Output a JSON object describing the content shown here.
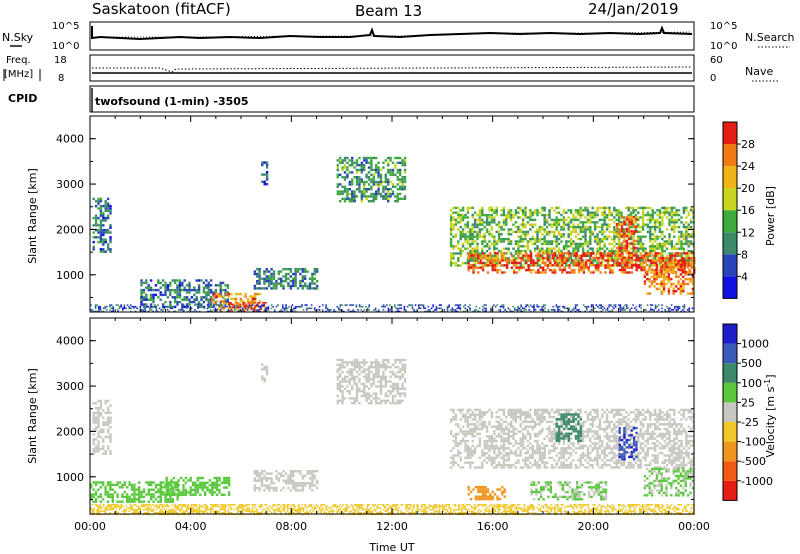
{
  "header": {
    "station": "Saskatoon (fitACF)",
    "beam": "Beam 13",
    "date": "24/Jan/2019"
  },
  "noise_panel": {
    "left_label": "N.Sky",
    "left_ticks": [
      "10^5",
      "10^0"
    ],
    "right_label": "N.Search",
    "right_ticks": [
      "10^5",
      "10^0"
    ]
  },
  "freq_panel": {
    "left_label_1": "Freq.",
    "left_label_2": "[MHz]",
    "left_ticks": [
      "18",
      "8"
    ],
    "right_label": "Nave",
    "right_ticks": [
      "60",
      "0"
    ]
  },
  "cpid_panel": {
    "label": "CPID",
    "program": "twofsound (1-min) -3505"
  },
  "chart_data": [
    {
      "type": "heatmap",
      "panel": "power",
      "ylabel": "Slant Range [km]",
      "xlabel": "",
      "ylim": [
        180,
        4500
      ],
      "yticks": [
        "1000",
        "2000",
        "3000",
        "4000"
      ],
      "xlim": [
        0,
        24
      ],
      "colorbar": {
        "label": "Power [dB]",
        "ticks": [
          "28",
          "24",
          "20",
          "16",
          "12",
          "8",
          "4"
        ],
        "range": [
          0,
          30
        ],
        "colors": [
          "#1010e0",
          "#2844b8",
          "#3c8a6a",
          "#3caa3c",
          "#c8d41e",
          "#f0b419",
          "#f07a14",
          "#e41c14"
        ]
      },
      "echo_regions": [
        {
          "t": [
            0.1,
            0.8
          ],
          "r": [
            1500,
            2700
          ],
          "level": 8
        },
        {
          "t": [
            2.0,
            5.5
          ],
          "r": [
            300,
            900
          ],
          "level": 8
        },
        {
          "t": [
            4.8,
            6.8
          ],
          "r": [
            200,
            600
          ],
          "level": 22
        },
        {
          "t": [
            5.5,
            7.0
          ],
          "r": [
            200,
            400
          ],
          "level": 28
        },
        {
          "t": [
            6.5,
            9.0
          ],
          "r": [
            700,
            1150
          ],
          "level": 9
        },
        {
          "t": [
            6.8,
            7.0
          ],
          "r": [
            3000,
            3500
          ],
          "level": 7
        },
        {
          "t": [
            9.8,
            12.5
          ],
          "r": [
            2600,
            3600
          ],
          "level": 11
        },
        {
          "t": [
            14.3,
            24.0
          ],
          "r": [
            1200,
            2500
          ],
          "level": 14
        },
        {
          "t": [
            15.0,
            24.0
          ],
          "r": [
            1050,
            1500
          ],
          "level": 26
        },
        {
          "t": [
            20.9,
            21.7
          ],
          "r": [
            1200,
            2300
          ],
          "level": 26
        },
        {
          "t": [
            22.0,
            24.0
          ],
          "r": [
            600,
            1300
          ],
          "level": 24
        },
        {
          "t": [
            0.0,
            24.0
          ],
          "r": [
            180,
            350
          ],
          "level": 6
        }
      ]
    },
    {
      "type": "heatmap",
      "panel": "velocity",
      "ylabel": "Slant Range [km]",
      "xlabel": "Time UT",
      "ylim": [
        180,
        4500
      ],
      "yticks": [
        "1000",
        "2000",
        "3000",
        "4000"
      ],
      "xlim": [
        0,
        24
      ],
      "xticks": [
        "00:00",
        "04:00",
        "08:00",
        "12:00",
        "16:00",
        "20:00",
        "00:00"
      ],
      "colorbar": {
        "label": "Velocity [m s^-1]",
        "ticks": [
          "1000",
          "500",
          "100",
          "25",
          "-25",
          "-100",
          "-500",
          "-1000"
        ],
        "range": [
          -1200,
          1200
        ],
        "colors": [
          "#e41c14",
          "#f05a14",
          "#f0961e",
          "#f0c828",
          "#c8c8c0",
          "#5ac83c",
          "#3c8a6a",
          "#3c5ab8",
          "#1e1ec8"
        ]
      },
      "echo_regions": [
        {
          "t": [
            0.1,
            0.8
          ],
          "r": [
            1500,
            2700
          ],
          "velocity": 0
        },
        {
          "t": [
            0.0,
            3.5
          ],
          "r": [
            450,
            900
          ],
          "velocity": 300
        },
        {
          "t": [
            3.0,
            5.5
          ],
          "r": [
            600,
            1000
          ],
          "velocity": 200
        },
        {
          "t": [
            0.0,
            24.0
          ],
          "r": [
            180,
            400
          ],
          "velocity": -200
        },
        {
          "t": [
            6.5,
            9.0
          ],
          "r": [
            700,
            1150
          ],
          "velocity": 0
        },
        {
          "t": [
            6.8,
            7.0
          ],
          "r": [
            3000,
            3500
          ],
          "velocity": 0
        },
        {
          "t": [
            9.8,
            12.5
          ],
          "r": [
            2600,
            3600
          ],
          "velocity": 0
        },
        {
          "t": [
            14.3,
            24.0
          ],
          "r": [
            1200,
            2500
          ],
          "velocity": 0
        },
        {
          "t": [
            18.5,
            19.5
          ],
          "r": [
            1800,
            2400
          ],
          "velocity": 600
        },
        {
          "t": [
            21.0,
            21.7
          ],
          "r": [
            1400,
            2100
          ],
          "velocity": 900
        },
        {
          "t": [
            22.0,
            24.0
          ],
          "r": [
            600,
            1200
          ],
          "velocity": 150
        },
        {
          "t": [
            17.5,
            20.5
          ],
          "r": [
            500,
            900
          ],
          "velocity": 150
        },
        {
          "t": [
            15.0,
            16.5
          ],
          "r": [
            500,
            800
          ],
          "velocity": -600
        }
      ]
    }
  ]
}
